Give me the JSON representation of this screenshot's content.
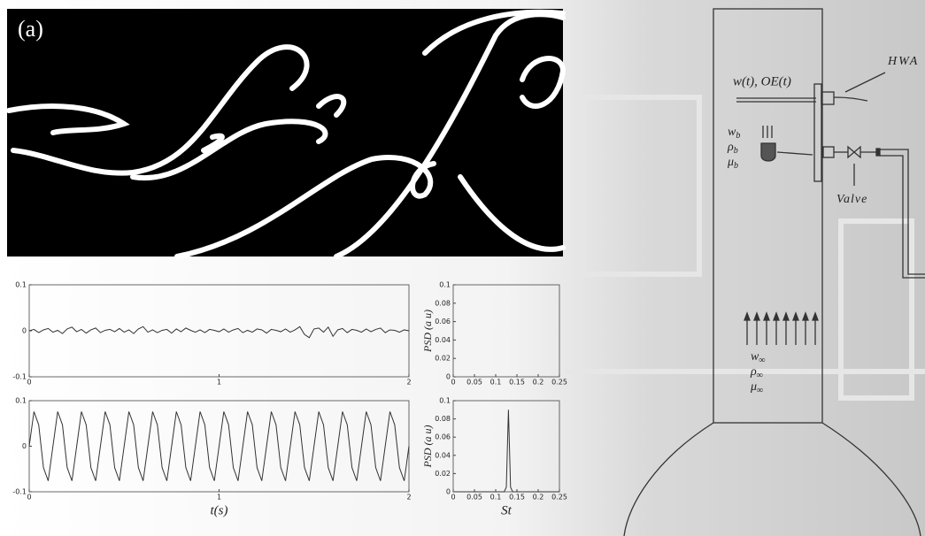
{
  "panel_label": "(a)",
  "chart_data": [
    {
      "type": "line",
      "color": "#333333",
      "x": [
        0,
        0.025,
        0.05,
        0.075,
        0.1,
        0.125,
        0.15,
        0.175,
        0.2,
        0.225,
        0.25,
        0.275,
        0.3,
        0.325,
        0.35,
        0.375,
        0.4,
        0.425,
        0.45,
        0.475,
        0.5,
        0.525,
        0.55,
        0.575,
        0.6,
        0.625,
        0.65,
        0.675,
        0.7,
        0.725,
        0.75,
        0.775,
        0.8,
        0.825,
        0.85,
        0.875,
        0.9,
        0.925,
        0.95,
        0.975,
        1,
        1.025,
        1.05,
        1.075,
        1.1,
        1.125,
        1.15,
        1.175,
        1.2,
        1.225,
        1.25,
        1.275,
        1.3,
        1.325,
        1.35,
        1.375,
        1.4,
        1.425,
        1.45,
        1.475,
        1.5,
        1.525,
        1.55,
        1.575,
        1.6,
        1.625,
        1.65,
        1.675,
        1.7,
        1.725,
        1.75,
        1.775,
        1.8,
        1.825,
        1.85,
        1.875,
        1.9,
        1.925,
        1.95,
        1.975,
        2
      ],
      "values": [
        0,
        0.003,
        -0.004,
        0.002,
        0.005,
        -0.003,
        0.001,
        -0.006,
        0.004,
        0.008,
        -0.002,
        0.003,
        -0.005,
        0.002,
        0.006,
        -0.004,
        0.001,
        0.003,
        -0.002,
        0.005,
        -0.003,
        0.002,
        -0.006,
        0.004,
        0.009,
        -0.003,
        0.002,
        -0.004,
        0.001,
        0.003,
        -0.005,
        0.004,
        -0.002,
        0.006,
        0.001,
        -0.003,
        0.002,
        -0.004,
        0.003,
        0.001,
        -0.002,
        0.004,
        -0.003,
        0.002,
        0.005,
        -0.004,
        0.001,
        -0.003,
        0.004,
        0.002,
        -0.005,
        0.003,
        0.001,
        -0.002,
        0.004,
        -0.003,
        0.002,
        0.009,
        -0.008,
        -0.015,
        0.004,
        0.006,
        -0.003,
        0.008,
        -0.012,
        0.002,
        0.005,
        -0.004,
        0.003,
        0.001,
        -0.003,
        0.004,
        -0.002,
        0.003,
        0.006,
        -0.004,
        0.002,
        0.001,
        -0.003,
        0.002,
        0
      ],
      "xlim": [
        0,
        2
      ],
      "xticks": [
        0,
        1,
        2
      ],
      "ylim": [
        -0.1,
        0.1
      ],
      "yticks": [
        -0.1,
        0,
        0.1
      ]
    },
    {
      "type": "line",
      "color": "#333333",
      "x_label": "t(s)",
      "x": [
        0,
        0.025,
        0.05,
        0.075,
        0.1,
        0.125,
        0.15,
        0.175,
        0.2,
        0.225,
        0.25,
        0.275,
        0.3,
        0.325,
        0.35,
        0.375,
        0.4,
        0.425,
        0.45,
        0.475,
        0.5,
        0.525,
        0.55,
        0.575,
        0.6,
        0.625,
        0.65,
        0.675,
        0.7,
        0.725,
        0.75,
        0.775,
        0.8,
        0.825,
        0.85,
        0.875,
        0.9,
        0.925,
        0.95,
        0.975,
        1,
        1.025,
        1.05,
        1.075,
        1.1,
        1.125,
        1.15,
        1.175,
        1.2,
        1.225,
        1.25,
        1.275,
        1.3,
        1.325,
        1.35,
        1.375,
        1.4,
        1.425,
        1.45,
        1.475,
        1.5,
        1.525,
        1.55,
        1.575,
        1.6,
        1.625,
        1.65,
        1.675,
        1.7,
        1.725,
        1.75,
        1.775,
        1.8,
        1.825,
        1.85,
        1.875,
        1.9,
        1.925,
        1.95,
        1.975,
        2
      ],
      "values": [
        0,
        0.076,
        0.047,
        -0.047,
        -0.076,
        0,
        0.076,
        0.047,
        -0.047,
        -0.076,
        0,
        0.076,
        0.047,
        -0.047,
        -0.076,
        0,
        0.076,
        0.047,
        -0.047,
        -0.076,
        0,
        0.076,
        0.047,
        -0.047,
        -0.076,
        0,
        0.076,
        0.047,
        -0.047,
        -0.076,
        0,
        0.076,
        0.047,
        -0.047,
        -0.076,
        0,
        0.076,
        0.047,
        -0.047,
        -0.076,
        0,
        0.076,
        0.047,
        -0.047,
        -0.076,
        0,
        0.076,
        0.047,
        -0.047,
        -0.076,
        0,
        0.076,
        0.047,
        -0.047,
        -0.076,
        0,
        0.076,
        0.047,
        -0.047,
        -0.076,
        0,
        0.076,
        0.047,
        -0.047,
        -0.076,
        0,
        0.076,
        0.047,
        -0.047,
        -0.076,
        0,
        0.076,
        0.047,
        -0.047,
        -0.076,
        0,
        0.076,
        0.047,
        -0.047,
        -0.076,
        0
      ],
      "xlim": [
        0,
        2
      ],
      "xticks": [
        0,
        1,
        2
      ],
      "ylim": [
        -0.1,
        0.1
      ],
      "yticks": [
        -0.1,
        0,
        0.1
      ]
    },
    {
      "type": "line",
      "y_label": "PSD (a u)",
      "xlim": [
        0,
        0.25
      ],
      "xticks": [
        0,
        0.05,
        0.1,
        0.15,
        0.2,
        0.25
      ],
      "ylim": [
        0,
        0.1
      ],
      "yticks": [
        0,
        0.02,
        0.04,
        0.06,
        0.08,
        0.1
      ]
    },
    {
      "type": "line",
      "color": "#333333",
      "y_label": "PSD (a u)",
      "x_label": "St",
      "x": [
        0,
        0.12,
        0.125,
        0.13,
        0.135,
        0.14,
        0.25
      ],
      "values": [
        0,
        0,
        0.005,
        0.09,
        0.005,
        0,
        0
      ],
      "xlim": [
        0,
        0.25
      ],
      "xticks": [
        0,
        0.05,
        0.1,
        0.15,
        0.2,
        0.25
      ],
      "ylim": [
        0,
        0.1
      ],
      "yticks": [
        0,
        0.02,
        0.04,
        0.06,
        0.08,
        0.1
      ]
    }
  ],
  "diagram": {
    "probe_signal": "w(t), OE(t)",
    "sensor": "HWA",
    "valve": "Valve",
    "jet": [
      {
        "base": "w",
        "sub": "b"
      },
      {
        "base": "ρ",
        "sub": "b"
      },
      {
        "base": "μ",
        "sub": "b"
      }
    ],
    "freestream": [
      {
        "base": "w",
        "sub": "∞"
      },
      {
        "base": "ρ",
        "sub": "∞"
      },
      {
        "base": "μ",
        "sub": "∞"
      }
    ]
  }
}
